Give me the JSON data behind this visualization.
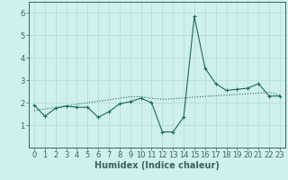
{
  "title": "",
  "xlabel": "Humidex (Indice chaleur)",
  "ylabel": "",
  "x": [
    0,
    1,
    2,
    3,
    4,
    5,
    6,
    7,
    8,
    9,
    10,
    11,
    12,
    13,
    14,
    15,
    16,
    17,
    18,
    19,
    20,
    21,
    22,
    23
  ],
  "y_line": [
    1.9,
    1.4,
    1.75,
    1.85,
    1.8,
    1.8,
    1.35,
    1.6,
    1.95,
    2.05,
    2.2,
    2.0,
    0.7,
    0.7,
    1.35,
    5.85,
    3.55,
    2.85,
    2.55,
    2.6,
    2.65,
    2.85,
    2.3,
    2.3
  ],
  "y_trend": [
    1.65,
    1.72,
    1.79,
    1.86,
    1.93,
    2.0,
    2.07,
    2.13,
    2.2,
    2.27,
    2.27,
    2.2,
    2.15,
    2.18,
    2.21,
    2.25,
    2.28,
    2.31,
    2.34,
    2.37,
    2.4,
    2.43,
    2.46,
    2.35
  ],
  "line_color": "#1a6b5a",
  "marker_color": "#1a6b5a",
  "trend_color": "#1a6b5a",
  "bg_color": "#cff0ec",
  "grid_color": "#b8ddd8",
  "axis_color": "#406060",
  "ylim": [
    0,
    6.5
  ],
  "xlim": [
    -0.5,
    23.5
  ],
  "yticks": [
    1,
    2,
    3,
    4,
    5,
    6
  ],
  "xticks": [
    0,
    1,
    2,
    3,
    4,
    5,
    6,
    7,
    8,
    9,
    10,
    11,
    12,
    13,
    14,
    15,
    16,
    17,
    18,
    19,
    20,
    21,
    22,
    23
  ],
  "xlabel_fontsize": 7,
  "tick_fontsize": 6,
  "ytick_fontsize": 6
}
